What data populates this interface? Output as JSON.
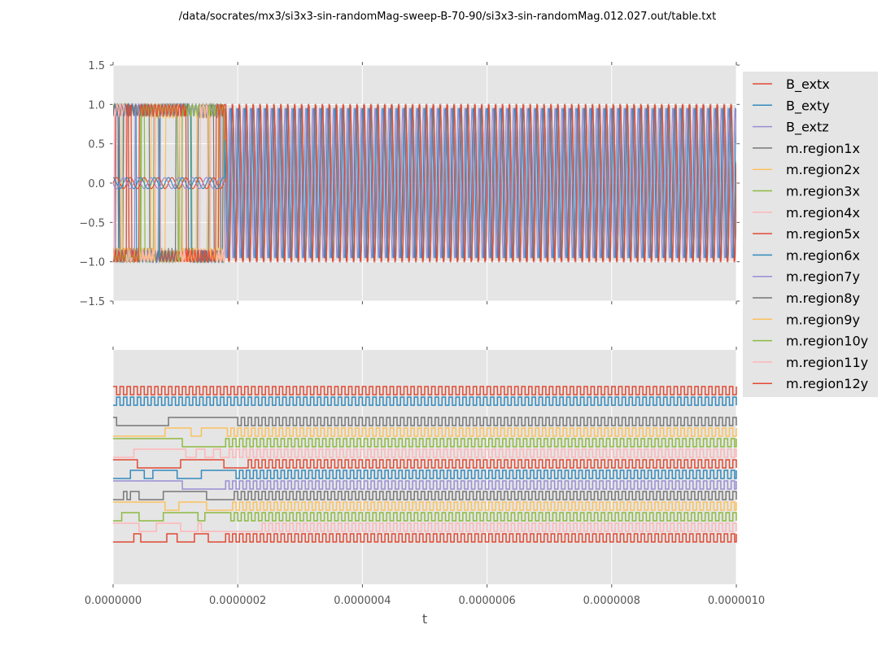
{
  "title": "/data/socrates/mx3/si3x3-sin-randomMag-sweep-B-70-90/si3x3-sin-randomMag.012.027.out/table.txt",
  "chart_data": [
    {
      "type": "line",
      "panel": "top",
      "title": "/data/socrates/mx3/si3x3-sin-randomMag-sweep-B-70-90/si3x3-sin-randomMag.012.027.out/table.txt",
      "xlabel": "",
      "ylabel": "",
      "xlim": [
        0,
        1e-06
      ],
      "ylim": [
        -1.5,
        1.5
      ],
      "yticks": [
        "1.5",
        "1.0",
        "0.5",
        "0.0",
        "−0.5",
        "−1.0",
        "−1.5"
      ],
      "ytick_values": [
        1.5,
        1.0,
        0.5,
        0.0,
        -0.5,
        -1.0,
        -1.5
      ],
      "grid": true,
      "description": "Magnetization components oscillating between -1 and 1; B_ext components oscillate near 0 with small amplitude (~0.07) until t~1.8e-7, after which all regions switch in sync at ~90 MHz",
      "series_summary": {
        "B_ext_amplitude": 0.07,
        "m_amplitude": 1.0,
        "sync_start_t": 1.8e-07,
        "switch_frequency_hz": 90000000
      }
    },
    {
      "type": "line",
      "panel": "bottom",
      "xlabel": "t",
      "xlim": [
        0,
        1e-06
      ],
      "xticks": [
        "0.0000000",
        "0.0000002",
        "0.0000004",
        "0.0000006",
        "0.0000008",
        "0.0000010"
      ],
      "xtick_values": [
        0,
        2e-07,
        4e-07,
        6e-07,
        8e-07,
        1e-06
      ],
      "grid": true,
      "description": "Stacked digital (square-wave) traces, one per series, offset vertically; top two are regular square waves, the rest irregular until ~1.8e-7 then regular",
      "traces": [
        {
          "name": "B_extx",
          "sync_t": 0
        },
        {
          "name": "B_exty",
          "sync_t": 0
        },
        {
          "name": "m.region1x",
          "sync_t": 1.8e-07
        },
        {
          "name": "m.region2x",
          "sync_t": 1.75e-07
        },
        {
          "name": "m.region3x",
          "sync_t": 1.8e-07
        },
        {
          "name": "m.region4x",
          "sync_t": 1.8e-07
        },
        {
          "name": "m.region5x",
          "sync_t": 1.85e-07
        },
        {
          "name": "m.region6x",
          "sync_t": 1.85e-07
        },
        {
          "name": "m.region7y",
          "sync_t": 1.8e-07
        },
        {
          "name": "m.region8y",
          "sync_t": 1.6e-07
        },
        {
          "name": "m.region9y",
          "sync_t": 1.8e-07
        },
        {
          "name": "m.region10y",
          "sync_t": 1.7e-07
        },
        {
          "name": "m.region11y",
          "sync_t": 1.8e-07
        },
        {
          "name": "m.region12y",
          "sync_t": 1.8e-07
        }
      ]
    }
  ],
  "legend": {
    "placement": "right",
    "entries": [
      {
        "label": "B_extx",
        "color": "#E24A33"
      },
      {
        "label": "B_exty",
        "color": "#348ABD"
      },
      {
        "label": "B_extz",
        "color": "#988ED5"
      },
      {
        "label": "m.region1x",
        "color": "#777777"
      },
      {
        "label": "m.region2x",
        "color": "#FBC15E"
      },
      {
        "label": "m.region3x",
        "color": "#8EBA42"
      },
      {
        "label": "m.region4x",
        "color": "#FFB5B8"
      },
      {
        "label": "m.region5x",
        "color": "#E24A33"
      },
      {
        "label": "m.region6x",
        "color": "#348ABD"
      },
      {
        "label": "m.region7y",
        "color": "#988ED5"
      },
      {
        "label": "m.region8y",
        "color": "#777777"
      },
      {
        "label": "m.region9y",
        "color": "#FBC15E"
      },
      {
        "label": "m.region10y",
        "color": "#8EBA42"
      },
      {
        "label": "m.region11y",
        "color": "#FFB5B8"
      },
      {
        "label": "m.region12y",
        "color": "#E24A33"
      }
    ]
  }
}
